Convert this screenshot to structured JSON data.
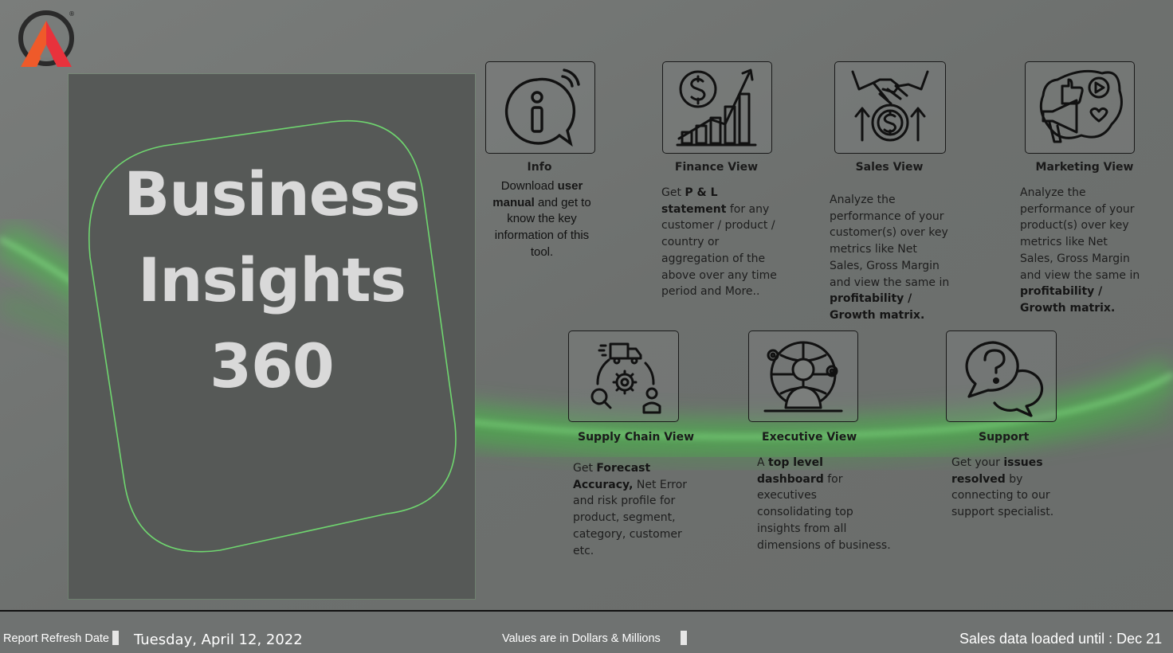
{
  "hero": {
    "line1": "Business",
    "line2": "Insights",
    "line3": "360"
  },
  "tiles": [
    {
      "title": "Info",
      "icon": "info-icon",
      "desc": [
        {
          "t": "Download ",
          "b": false
        },
        {
          "t": "user manual",
          "b": true
        },
        {
          "t": " and get to know the key information of this tool.",
          "b": false
        }
      ]
    },
    {
      "title": "Finance View",
      "icon": "finance-chart-icon",
      "desc": [
        {
          "t": "Get  ",
          "b": false
        },
        {
          "t": "P & L statement",
          "b": true
        },
        {
          "t": " for any customer / product / country or aggregation of the above over any time period and More..",
          "b": false
        }
      ]
    },
    {
      "title": "Sales View",
      "icon": "handshake-dollar-icon",
      "desc": [
        {
          "t": "Analyze the performance of your customer(s) over key metrics like Net Sales, Gross Margin and view the same in ",
          "b": false
        },
        {
          "t": "profitability / Growth matrix.",
          "b": true
        }
      ]
    },
    {
      "title": "Marketing View",
      "icon": "megaphone-icon",
      "desc": [
        {
          "t": "Analyze the performance of your product(s) over key metrics like Net Sales, Gross Margin and view the same in ",
          "b": false
        },
        {
          "t": "profitability / Growth matrix.",
          "b": true
        }
      ]
    },
    {
      "title": "Supply Chain View",
      "icon": "supply-chain-icon",
      "desc": [
        {
          "t": "Get ",
          "b": false
        },
        {
          "t": "Forecast Accuracy,",
          "b": true
        },
        {
          "t": " Net Error and risk profile for product, segment, category, customer etc.",
          "b": false
        }
      ]
    },
    {
      "title": "Executive View",
      "icon": "executive-globe-icon",
      "desc": [
        {
          "t": "A ",
          "b": false
        },
        {
          "t": "top level dashboard",
          "b": true
        },
        {
          "t": " for executives consolidating top insights from all dimensions of business.",
          "b": false
        }
      ]
    },
    {
      "title": "Support",
      "icon": "support-question-icon",
      "desc": [
        {
          "t": "Get your ",
          "b": false
        },
        {
          "t": "issues resolved",
          "b": true
        },
        {
          "t": " by connecting to our support specialist.",
          "b": false
        }
      ]
    }
  ],
  "footer": {
    "refresh_label": "Report Refresh Date",
    "refresh_date": "Tuesday, April 12, 2022",
    "values_note": "Values are in Dollars & Millions",
    "sales_loaded": "Sales data loaded until : Dec 21"
  },
  "colors": {
    "accent_green": "#5fd35f",
    "logo_orange": "#f26a2e",
    "logo_red": "#e8323c",
    "logo_dark": "#222222"
  }
}
